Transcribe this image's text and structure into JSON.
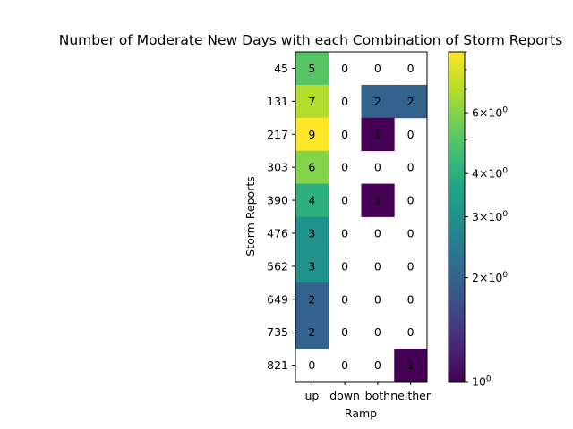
{
  "chart_data": {
    "type": "heatmap",
    "title": "Number of Moderate New Days with each Combination of Storm Reports",
    "xlabel": "Ramp",
    "ylabel": "Storm Reports",
    "x_categories": [
      "up",
      "down",
      "both",
      "neither"
    ],
    "y_categories": [
      "45",
      "131",
      "217",
      "303",
      "390",
      "476",
      "562",
      "649",
      "735",
      "821"
    ],
    "values": [
      [
        5,
        0,
        0,
        0
      ],
      [
        7,
        0,
        2,
        2
      ],
      [
        9,
        0,
        1,
        0
      ],
      [
        6,
        0,
        0,
        0
      ],
      [
        4,
        0,
        1,
        0
      ],
      [
        3,
        0,
        0,
        0
      ],
      [
        3,
        0,
        0,
        0
      ],
      [
        2,
        0,
        0,
        0
      ],
      [
        2,
        0,
        0,
        0
      ],
      [
        0,
        0,
        0,
        1
      ]
    ],
    "colormap": "viridis",
    "color_scale": "log",
    "zero_cells_blank": true,
    "colorbar": {
      "range": [
        1,
        9
      ],
      "tick_labels": [
        {
          "value": 1,
          "base": "10",
          "exp": "0"
        },
        {
          "value": 2,
          "base": "2×10",
          "exp": "0"
        },
        {
          "value": 3,
          "base": "3×10",
          "exp": "0"
        },
        {
          "value": 4,
          "base": "4×10",
          "exp": "0"
        },
        {
          "value": 6,
          "base": "6×10",
          "exp": "0"
        }
      ]
    }
  }
}
